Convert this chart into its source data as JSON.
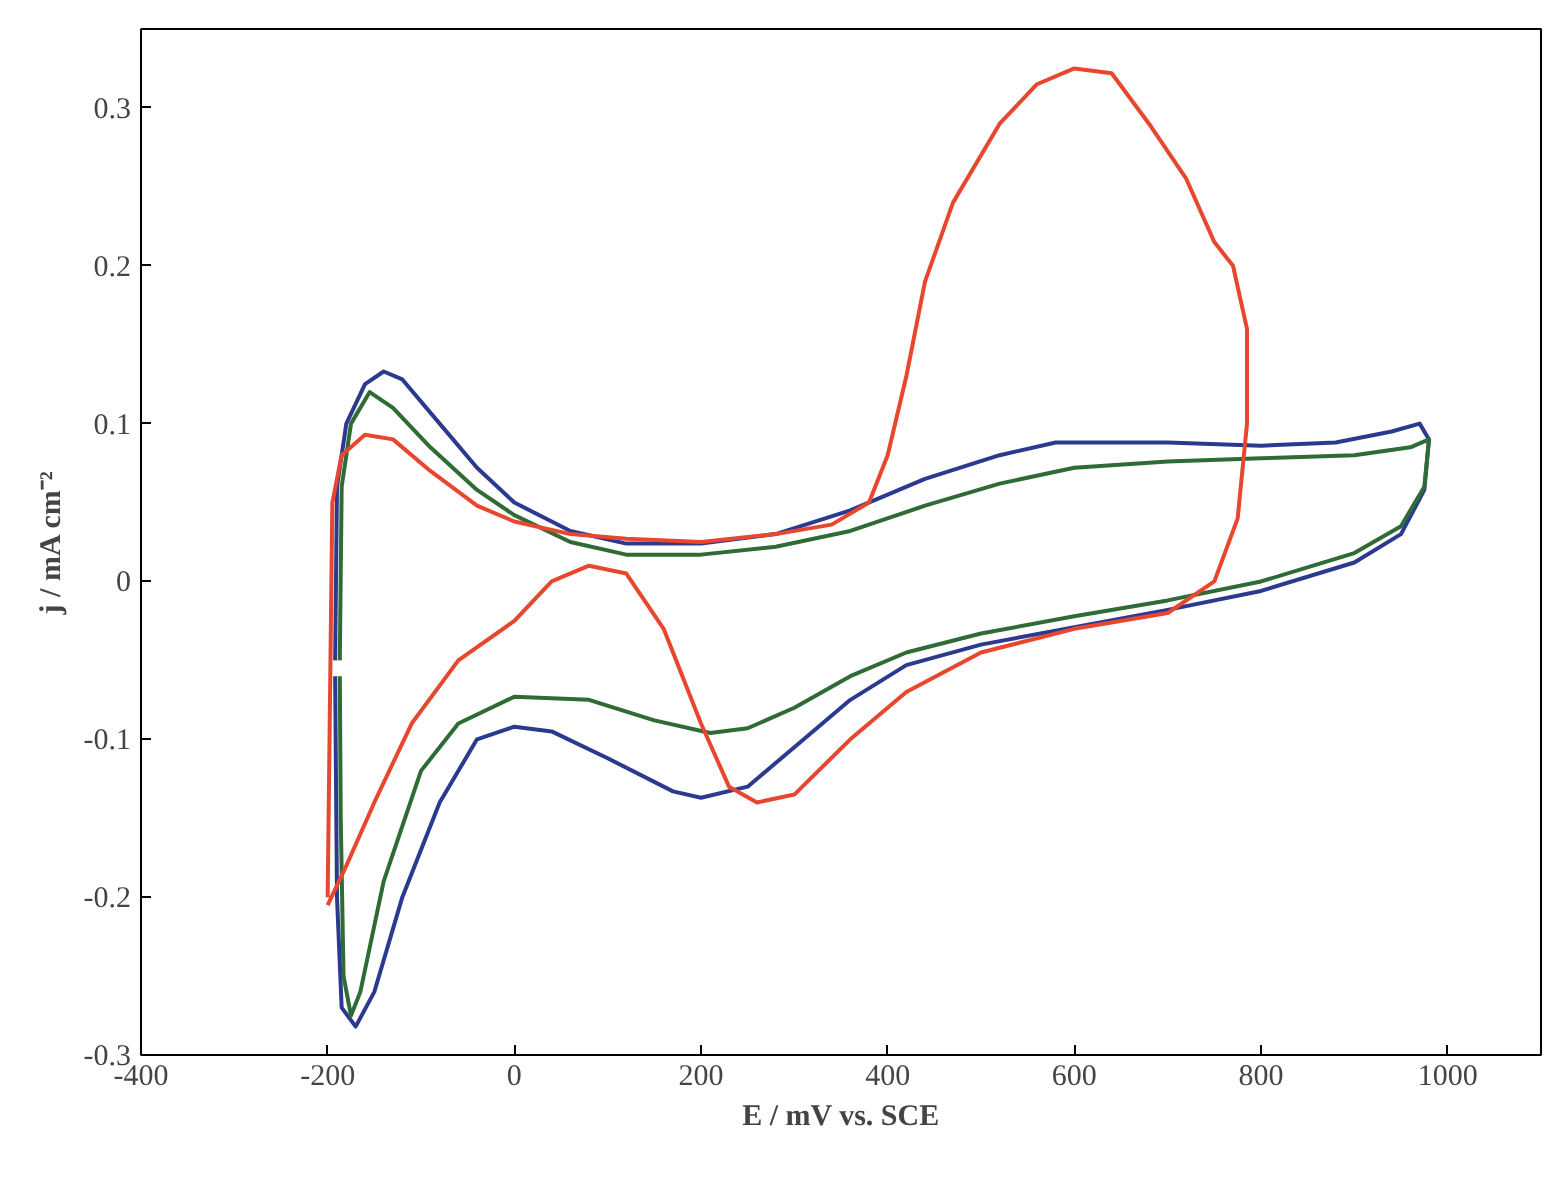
{
  "chart_data": {
    "type": "line",
    "xlabel": "E / mV vs. SCE",
    "ylabel": "j / mA cm⁻²",
    "xlim": [
      -400,
      1100
    ],
    "ylim": [
      -0.3,
      0.35
    ],
    "xticks": [
      -400,
      -200,
      0,
      200,
      400,
      600,
      800,
      1000
    ],
    "yticks": [
      {
        "value": -0.3,
        "label": "-0.3"
      },
      {
        "value": -0.2,
        "label": "-0.2"
      },
      {
        "value": -0.1,
        "label": "-0.1"
      },
      {
        "value": 0,
        "label": "0"
      },
      {
        "value": 0.1,
        "label": "0.1"
      },
      {
        "value": 0.2,
        "label": "0.2"
      },
      {
        "value": 0.3,
        "label": "0.3"
      }
    ],
    "grid": false,
    "marker": "none",
    "line_style": "solid",
    "series": [
      {
        "color": "#2b3a8f",
        "x": [
          -192,
          -190,
          -180,
          -160,
          -140,
          -120,
          -80,
          -40,
          0,
          60,
          120,
          200,
          280,
          360,
          440,
          520,
          580,
          700,
          800,
          880,
          940,
          970,
          980,
          975,
          950,
          900,
          800,
          700,
          600,
          500,
          420,
          360,
          300,
          250,
          200,
          170,
          100,
          40,
          0,
          -40,
          -80,
          -120,
          -150,
          -170,
          -185,
          -190,
          -192
        ],
        "values": [
          -0.05,
          0.06,
          0.1,
          0.125,
          0.133,
          0.128,
          0.1,
          0.072,
          0.05,
          0.032,
          0.024,
          0.024,
          0.03,
          0.045,
          0.065,
          0.08,
          0.088,
          0.088,
          0.086,
          0.088,
          0.095,
          0.1,
          0.09,
          0.058,
          0.03,
          0.012,
          -0.006,
          -0.018,
          -0.029,
          -0.04,
          -0.053,
          -0.075,
          -0.105,
          -0.13,
          -0.137,
          -0.133,
          -0.112,
          -0.095,
          -0.092,
          -0.1,
          -0.14,
          -0.2,
          -0.26,
          -0.282,
          -0.27,
          -0.2,
          -0.06
        ]
      },
      {
        "color": "#2e6b35",
        "x": [
          -187,
          -185,
          -175,
          -155,
          -130,
          -90,
          -40,
          0,
          60,
          120,
          200,
          280,
          360,
          440,
          520,
          600,
          700,
          800,
          900,
          960,
          980,
          975,
          950,
          900,
          800,
          700,
          600,
          500,
          420,
          360,
          300,
          250,
          210,
          150,
          80,
          0,
          -60,
          -100,
          -140,
          -165,
          -175,
          -183,
          -186,
          -187
        ],
        "values": [
          -0.05,
          0.06,
          0.1,
          0.12,
          0.11,
          0.085,
          0.058,
          0.042,
          0.025,
          0.017,
          0.017,
          0.022,
          0.032,
          0.048,
          0.062,
          0.072,
          0.076,
          0.078,
          0.08,
          0.085,
          0.09,
          0.06,
          0.035,
          0.018,
          0.0,
          -0.012,
          -0.022,
          -0.033,
          -0.045,
          -0.06,
          -0.08,
          -0.093,
          -0.096,
          -0.088,
          -0.075,
          -0.073,
          -0.09,
          -0.12,
          -0.19,
          -0.26,
          -0.275,
          -0.25,
          -0.15,
          -0.06
        ]
      },
      {
        "color": "#e8472f",
        "x": [
          -200,
          -195,
          -185,
          -160,
          -130,
          -90,
          -40,
          0,
          60,
          120,
          200,
          280,
          340,
          380,
          400,
          420,
          440,
          470,
          520,
          560,
          600,
          640,
          680,
          720,
          750,
          770,
          785,
          785,
          775,
          750,
          700,
          600,
          500,
          420,
          360,
          300,
          260,
          230,
          200,
          160,
          120,
          80,
          40,
          0,
          -60,
          -110,
          -150,
          -180,
          -200
        ],
        "values": [
          -0.2,
          0.05,
          0.08,
          0.093,
          0.09,
          0.07,
          0.048,
          0.038,
          0.03,
          0.027,
          0.025,
          0.03,
          0.036,
          0.05,
          0.08,
          0.13,
          0.19,
          0.24,
          0.29,
          0.315,
          0.325,
          0.322,
          0.29,
          0.255,
          0.215,
          0.2,
          0.16,
          0.1,
          0.04,
          0.0,
          -0.02,
          -0.03,
          -0.045,
          -0.07,
          -0.1,
          -0.135,
          -0.14,
          -0.13,
          -0.09,
          -0.03,
          0.005,
          0.01,
          0.0,
          -0.025,
          -0.05,
          -0.09,
          -0.14,
          -0.18,
          -0.205
        ]
      }
    ]
  }
}
